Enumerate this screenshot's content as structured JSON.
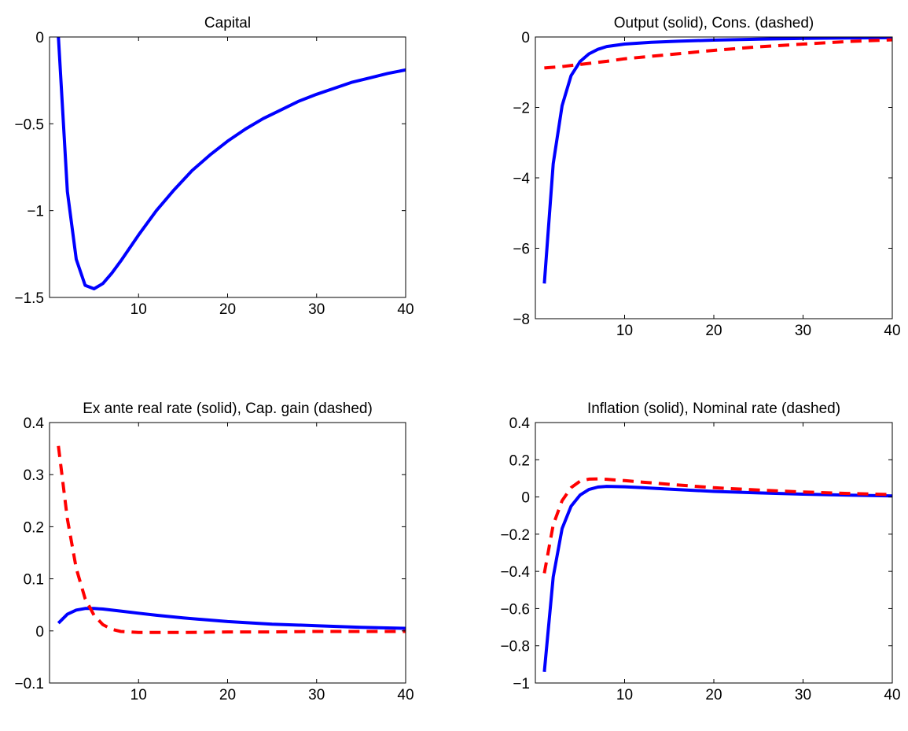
{
  "chart_data": [
    {
      "type": "line",
      "title": "Capital",
      "xlim": [
        0,
        40
      ],
      "ylim": [
        -1.5,
        0
      ],
      "xticks": [
        10,
        20,
        30,
        40
      ],
      "yticks": [
        {
          "v": 0,
          "label": "0"
        },
        {
          "v": -0.5,
          "label": "−0.5"
        },
        {
          "v": -1,
          "label": "−1"
        },
        {
          "v": -1.5,
          "label": "−1.5"
        }
      ],
      "series": [
        {
          "style": "solid",
          "color": "#0000ff",
          "x": [
            1,
            2,
            3,
            4,
            5,
            6,
            7,
            8,
            10,
            12,
            14,
            16,
            18,
            20,
            22,
            24,
            26,
            28,
            30,
            32,
            34,
            36,
            38,
            40
          ],
          "y": [
            0,
            -0.89,
            -1.28,
            -1.43,
            -1.45,
            -1.42,
            -1.36,
            -1.29,
            -1.14,
            -1.0,
            -0.88,
            -0.77,
            -0.68,
            -0.6,
            -0.53,
            -0.47,
            -0.42,
            -0.37,
            -0.33,
            -0.295,
            -0.26,
            -0.235,
            -0.21,
            -0.19
          ]
        }
      ]
    },
    {
      "type": "line",
      "title": "Output (solid), Cons. (dashed)",
      "xlim": [
        0,
        40
      ],
      "ylim": [
        -8,
        0
      ],
      "xticks": [
        10,
        20,
        30,
        40
      ],
      "yticks": [
        {
          "v": 0,
          "label": "0"
        },
        {
          "v": -2,
          "label": "−2"
        },
        {
          "v": -4,
          "label": "−4"
        },
        {
          "v": -6,
          "label": "−6"
        },
        {
          "v": -8,
          "label": "−8"
        }
      ],
      "series": [
        {
          "style": "solid",
          "color": "#0000ff",
          "x": [
            1,
            2,
            3,
            4,
            5,
            6,
            7,
            8,
            10,
            13,
            16,
            20,
            25,
            30,
            35,
            40
          ],
          "y": [
            -7.0,
            -3.6,
            -1.95,
            -1.1,
            -0.7,
            -0.48,
            -0.35,
            -0.27,
            -0.2,
            -0.15,
            -0.12,
            -0.09,
            -0.06,
            -0.04,
            -0.03,
            -0.02
          ]
        },
        {
          "style": "dashed",
          "color": "#ff0000",
          "x": [
            1,
            3,
            5,
            8,
            10,
            15,
            20,
            25,
            30,
            35,
            40
          ],
          "y": [
            -0.88,
            -0.84,
            -0.78,
            -0.69,
            -0.62,
            -0.5,
            -0.38,
            -0.28,
            -0.2,
            -0.13,
            -0.08
          ]
        }
      ]
    },
    {
      "type": "line",
      "title": "Ex ante real rate (solid), Cap. gain (dashed)",
      "xlim": [
        0,
        40
      ],
      "ylim": [
        -0.1,
        0.4
      ],
      "xticks": [
        10,
        20,
        30,
        40
      ],
      "yticks": [
        {
          "v": 0.4,
          "label": "0.4"
        },
        {
          "v": 0.3,
          "label": "0.3"
        },
        {
          "v": 0.2,
          "label": "0.2"
        },
        {
          "v": 0.1,
          "label": "0.1"
        },
        {
          "v": 0,
          "label": "0"
        },
        {
          "v": -0.1,
          "label": "−0.1"
        }
      ],
      "series": [
        {
          "style": "solid",
          "color": "#0000ff",
          "x": [
            1,
            2,
            3,
            4,
            5,
            6,
            8,
            10,
            12,
            15,
            20,
            25,
            30,
            35,
            40
          ],
          "y": [
            0.015,
            0.032,
            0.04,
            0.043,
            0.043,
            0.042,
            0.038,
            0.034,
            0.03,
            0.025,
            0.018,
            0.013,
            0.01,
            0.007,
            0.005
          ]
        },
        {
          "style": "dashed",
          "color": "#ff0000",
          "x": [
            1,
            2,
            3,
            4,
            5,
            6,
            7,
            8,
            9,
            10,
            12,
            15,
            20,
            25,
            30,
            35,
            40
          ],
          "y": [
            0.355,
            0.215,
            0.12,
            0.062,
            0.03,
            0.012,
            0.003,
            -0.001,
            -0.002,
            -0.003,
            -0.003,
            -0.003,
            -0.002,
            -0.002,
            -0.001,
            -0.001,
            -0.001
          ]
        }
      ]
    },
    {
      "type": "line",
      "title": "Inflation (solid), Nominal rate (dashed)",
      "xlim": [
        0,
        40
      ],
      "ylim": [
        -1,
        0.4
      ],
      "xticks": [
        10,
        20,
        30,
        40
      ],
      "yticks": [
        {
          "v": 0.4,
          "label": "0.4"
        },
        {
          "v": 0.2,
          "label": "0.2"
        },
        {
          "v": 0,
          "label": "0"
        },
        {
          "v": -0.2,
          "label": "−0.2"
        },
        {
          "v": -0.4,
          "label": "−0.4"
        },
        {
          "v": -0.6,
          "label": "−0.6"
        },
        {
          "v": -0.8,
          "label": "−0.8"
        },
        {
          "v": -1,
          "label": "−1"
        }
      ],
      "series": [
        {
          "style": "solid",
          "color": "#0000ff",
          "x": [
            1,
            2,
            3,
            4,
            5,
            6,
            7,
            8,
            10,
            12,
            15,
            20,
            25,
            30,
            35,
            40
          ],
          "y": [
            -0.94,
            -0.43,
            -0.17,
            -0.05,
            0.01,
            0.04,
            0.053,
            0.057,
            0.055,
            0.05,
            0.042,
            0.03,
            0.022,
            0.015,
            0.01,
            0.006
          ]
        },
        {
          "style": "dashed",
          "color": "#ff0000",
          "x": [
            1,
            2,
            3,
            4,
            5,
            6,
            7,
            8,
            10,
            12,
            15,
            20,
            25,
            30,
            35,
            40
          ],
          "y": [
            -0.41,
            -0.15,
            -0.02,
            0.05,
            0.085,
            0.096,
            0.097,
            0.095,
            0.088,
            0.08,
            0.068,
            0.05,
            0.037,
            0.027,
            0.019,
            0.013
          ]
        }
      ]
    }
  ]
}
